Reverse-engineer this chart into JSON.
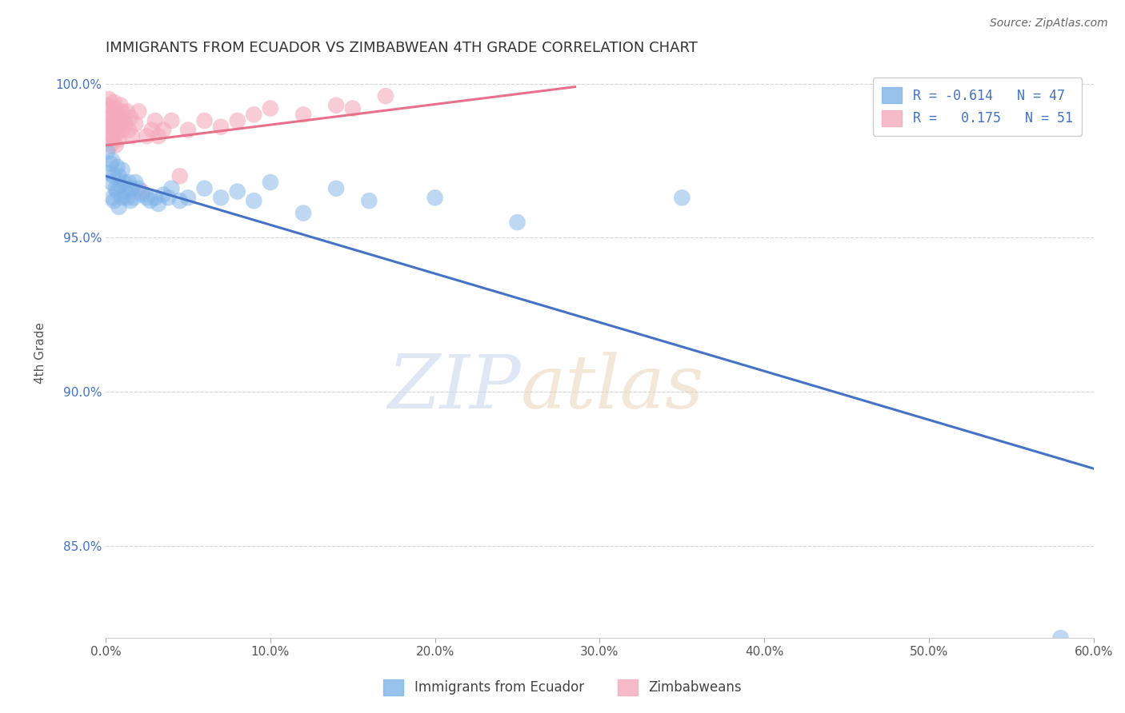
{
  "title": "IMMIGRANTS FROM ECUADOR VS ZIMBABWEAN 4TH GRADE CORRELATION CHART",
  "source": "Source: ZipAtlas.com",
  "ylabel": "4th Grade",
  "xlim": [
    0.0,
    0.6
  ],
  "ylim": [
    0.82,
    1.005
  ],
  "xtick_labels": [
    "0.0%",
    "10.0%",
    "20.0%",
    "30.0%",
    "40.0%",
    "50.0%",
    "60.0%"
  ],
  "xtick_values": [
    0.0,
    0.1,
    0.2,
    0.3,
    0.4,
    0.5,
    0.6
  ],
  "ytick_labels": [
    "85.0%",
    "90.0%",
    "95.0%",
    "100.0%"
  ],
  "ytick_values": [
    0.85,
    0.9,
    0.95,
    1.0
  ],
  "blue_scatter_x": [
    0.001,
    0.002,
    0.003,
    0.003,
    0.004,
    0.004,
    0.005,
    0.005,
    0.006,
    0.007,
    0.007,
    0.008,
    0.008,
    0.009,
    0.01,
    0.01,
    0.011,
    0.012,
    0.013,
    0.014,
    0.015,
    0.016,
    0.017,
    0.018,
    0.02,
    0.022,
    0.025,
    0.027,
    0.03,
    0.032,
    0.035,
    0.038,
    0.04,
    0.045,
    0.05,
    0.06,
    0.07,
    0.08,
    0.09,
    0.1,
    0.12,
    0.14,
    0.16,
    0.2,
    0.25,
    0.35,
    0.58
  ],
  "blue_scatter_y": [
    0.978,
    0.971,
    0.974,
    0.968,
    0.975,
    0.963,
    0.97,
    0.962,
    0.966,
    0.973,
    0.965,
    0.97,
    0.96,
    0.967,
    0.972,
    0.963,
    0.968,
    0.965,
    0.963,
    0.968,
    0.962,
    0.966,
    0.963,
    0.968,
    0.966,
    0.964,
    0.963,
    0.962,
    0.963,
    0.961,
    0.964,
    0.963,
    0.966,
    0.962,
    0.963,
    0.966,
    0.963,
    0.965,
    0.962,
    0.968,
    0.958,
    0.966,
    0.962,
    0.963,
    0.955,
    0.963,
    0.82
  ],
  "pink_scatter_x": [
    0.001,
    0.001,
    0.001,
    0.002,
    0.002,
    0.002,
    0.003,
    0.003,
    0.003,
    0.004,
    0.004,
    0.005,
    0.005,
    0.005,
    0.006,
    0.006,
    0.006,
    0.007,
    0.007,
    0.008,
    0.008,
    0.009,
    0.009,
    0.01,
    0.01,
    0.011,
    0.012,
    0.013,
    0.014,
    0.015,
    0.016,
    0.018,
    0.02,
    0.022,
    0.025,
    0.028,
    0.03,
    0.032,
    0.035,
    0.04,
    0.045,
    0.05,
    0.06,
    0.07,
    0.08,
    0.09,
    0.1,
    0.12,
    0.14,
    0.15,
    0.17
  ],
  "pink_scatter_y": [
    0.993,
    0.987,
    0.982,
    0.995,
    0.989,
    0.984,
    0.992,
    0.986,
    0.98,
    0.99,
    0.983,
    0.994,
    0.988,
    0.982,
    0.992,
    0.986,
    0.98,
    0.99,
    0.984,
    0.988,
    0.982,
    0.993,
    0.987,
    0.991,
    0.985,
    0.989,
    0.987,
    0.991,
    0.985,
    0.989,
    0.983,
    0.987,
    0.991,
    0.965,
    0.983,
    0.985,
    0.988,
    0.983,
    0.985,
    0.988,
    0.97,
    0.985,
    0.988,
    0.986,
    0.988,
    0.99,
    0.992,
    0.99,
    0.993,
    0.992,
    0.996
  ],
  "blue_line_x": [
    0.0,
    0.6
  ],
  "blue_line_y": [
    0.97,
    0.875
  ],
  "pink_line_x": [
    0.0,
    0.285
  ],
  "pink_line_y": [
    0.98,
    0.999
  ],
  "blue_color": "#7EB3E8",
  "pink_color": "#F4AABC",
  "blue_line_color": "#4472C4",
  "pink_line_color": "#E8708A",
  "watermark_zip": "ZIP",
  "watermark_atlas": "atlas",
  "background_color": "#FFFFFF",
  "grid_color": "#CCCCCC",
  "title_color": "#333333",
  "axis_color": "#4472C4",
  "legend_text_color": "#4472C4",
  "source_color": "#666666"
}
